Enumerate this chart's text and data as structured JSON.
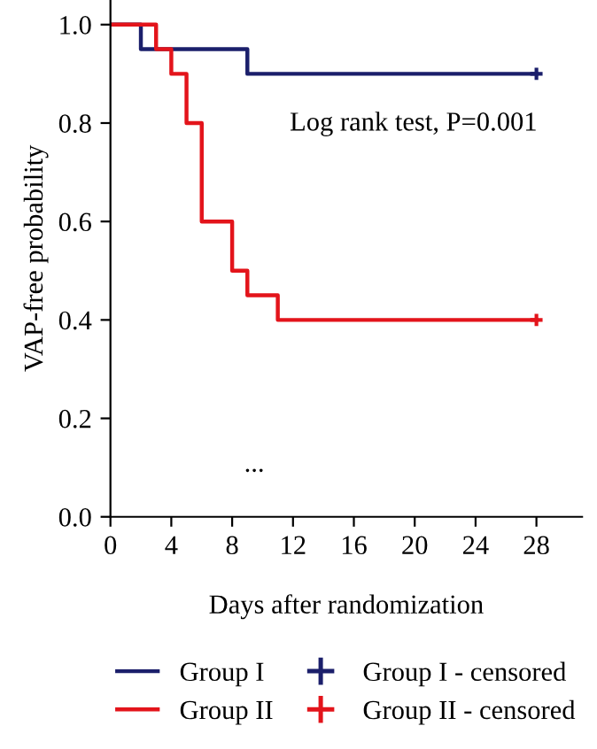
{
  "chart_data": {
    "type": "step",
    "xlabel": "Days after randomization",
    "ylabel": "VAP-free probability",
    "xlim": [
      0,
      31
    ],
    "xticks": [
      0,
      4,
      8,
      12,
      16,
      20,
      24,
      28
    ],
    "ylim": [
      0,
      1.05
    ],
    "yticks": [
      {
        "value": 0,
        "label": "0.0"
      },
      {
        "value": 0.2,
        "label": "0.2"
      },
      {
        "value": 0.4,
        "label": "0.4"
      },
      {
        "value": 0.6,
        "label": "0.6"
      },
      {
        "value": 0.8,
        "label": "0.8"
      },
      {
        "value": 1,
        "label": "1.0"
      }
    ],
    "series": [
      {
        "name": "Group I",
        "color": "#1b1f6b",
        "x": [
          0,
          2,
          9,
          28
        ],
        "values": [
          1,
          0.95,
          0.9,
          0.9
        ]
      },
      {
        "name": "Group II",
        "color": "#e3141b",
        "x": [
          0,
          3,
          4,
          5,
          6,
          8,
          9,
          11,
          28
        ],
        "values": [
          1,
          0.95,
          0.9,
          0.8,
          0.6,
          0.5,
          0.45,
          0.4,
          0.4
        ]
      },
      {
        "name": "Group I - censored",
        "type": "scatter",
        "marker": "cross",
        "color": "#1b1f6b",
        "x": [
          28
        ],
        "values": [
          0.9
        ]
      },
      {
        "name": "Group II - censored",
        "type": "scatter",
        "marker": "cross",
        "color": "#e3141b",
        "x": [
          28
        ],
        "values": [
          0.4
        ]
      }
    ],
    "annotations": [
      "Log rank test, P=0.001",
      "..."
    ],
    "grid": false,
    "legend": "bottom"
  }
}
